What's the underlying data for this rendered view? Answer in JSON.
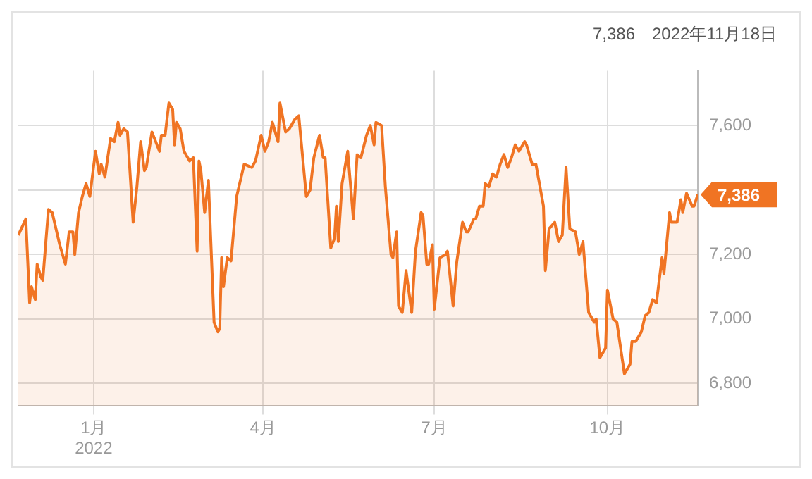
{
  "chart_data": {
    "type": "area",
    "annotations": [
      "7,386",
      "2022年11月18日",
      {
        "text": "7,386",
        "x": "2022-11-18",
        "y": 7386
      }
    ],
    "x": [
      "2021-11-22",
      "2021-11-26",
      "2021-11-28",
      "2021-11-29",
      "2021-12-01",
      "2021-12-02",
      "2021-12-04",
      "2021-12-05",
      "2021-12-08",
      "2021-12-10",
      "2021-12-14",
      "2021-12-17",
      "2021-12-19",
      "2021-12-21",
      "2021-12-22",
      "2021-12-24",
      "2021-12-26",
      "2021-12-28",
      "2021-12-30",
      "2022-01-02",
      "2022-01-04",
      "2022-01-05",
      "2022-01-07",
      "2022-01-10",
      "2022-01-12",
      "2022-01-14",
      "2022-01-15",
      "2022-01-17",
      "2022-01-19",
      "2022-01-22",
      "2022-01-24",
      "2022-01-26",
      "2022-01-28",
      "2022-01-29",
      "2022-02-01",
      "2022-02-05",
      "2022-02-06",
      "2022-02-08",
      "2022-02-10",
      "2022-02-12",
      "2022-02-13",
      "2022-02-14",
      "2022-02-16",
      "2022-02-18",
      "2022-02-21",
      "2022-02-23",
      "2022-02-25",
      "2022-02-26",
      "2022-02-27",
      "2022-03-01",
      "2022-03-03",
      "2022-03-04",
      "2022-03-06",
      "2022-03-08",
      "2022-03-09",
      "2022-03-10",
      "2022-03-11",
      "2022-03-13",
      "2022-03-15",
      "2022-03-18",
      "2022-03-22",
      "2022-03-26",
      "2022-03-28",
      "2022-03-31",
      "2022-04-02",
      "2022-04-04",
      "2022-04-06",
      "2022-04-09",
      "2022-04-10",
      "2022-04-13",
      "2022-04-15",
      "2022-04-17",
      "2022-04-18",
      "2022-04-20",
      "2022-04-24",
      "2022-04-26",
      "2022-04-28",
      "2022-05-01",
      "2022-05-03",
      "2022-05-04",
      "2022-05-07",
      "2022-05-09",
      "2022-05-10",
      "2022-05-11",
      "2022-05-13",
      "2022-05-16",
      "2022-05-19",
      "2022-05-21",
      "2022-05-23",
      "2022-05-26",
      "2022-05-28",
      "2022-05-30",
      "2022-05-31",
      "2022-06-03",
      "2022-06-05",
      "2022-06-08",
      "2022-06-09",
      "2022-06-11",
      "2022-06-12",
      "2022-06-14",
      "2022-06-16",
      "2022-06-19",
      "2022-06-21",
      "2022-06-24",
      "2022-06-25",
      "2022-06-27",
      "2022-06-28",
      "2022-06-30",
      "2022-07-01",
      "2022-07-04",
      "2022-07-07",
      "2022-07-08",
      "2022-07-11",
      "2022-07-13",
      "2022-07-16",
      "2022-07-18",
      "2022-07-19",
      "2022-07-22",
      "2022-07-23",
      "2022-07-25",
      "2022-07-27",
      "2022-07-28",
      "2022-07-30",
      "2022-08-01",
      "2022-08-03",
      "2022-08-05",
      "2022-08-07",
      "2022-08-09",
      "2022-08-11",
      "2022-08-13",
      "2022-08-15",
      "2022-08-18",
      "2022-08-19",
      "2022-08-22",
      "2022-08-24",
      "2022-08-28",
      "2022-08-29",
      "2022-08-31",
      "2022-09-03",
      "2022-09-05",
      "2022-09-07",
      "2022-09-09",
      "2022-09-11",
      "2022-09-14",
      "2022-09-16",
      "2022-09-18",
      "2022-09-21",
      "2022-09-22",
      "2022-09-24",
      "2022-09-25",
      "2022-09-27",
      "2022-09-30",
      "2022-10-01",
      "2022-10-04",
      "2022-10-06",
      "2022-10-10",
      "2022-10-13",
      "2022-10-14",
      "2022-10-16",
      "2022-10-19",
      "2022-10-21",
      "2022-10-23",
      "2022-10-25",
      "2022-10-27",
      "2022-10-30",
      "2022-10-31",
      "2022-11-03",
      "2022-11-04",
      "2022-11-07",
      "2022-11-09",
      "2022-11-10",
      "2022-11-12",
      "2022-11-15",
      "2022-11-16",
      "2022-11-18"
    ],
    "series": [
      {
        "color": "#f07423",
        "values": [
          7260,
          7310,
          7050,
          7100,
          7060,
          7170,
          7130,
          7120,
          7340,
          7330,
          7230,
          7170,
          7270,
          7270,
          7200,
          7330,
          7380,
          7420,
          7380,
          7520,
          7450,
          7480,
          7440,
          7560,
          7550,
          7610,
          7570,
          7590,
          7580,
          7300,
          7410,
          7550,
          7460,
          7470,
          7580,
          7520,
          7570,
          7570,
          7670,
          7650,
          7540,
          7610,
          7590,
          7520,
          7490,
          7500,
          7210,
          7490,
          7460,
          7330,
          7430,
          7280,
          6990,
          6960,
          6970,
          7190,
          7100,
          7190,
          7180,
          7380,
          7480,
          7470,
          7490,
          7570,
          7520,
          7550,
          7610,
          7550,
          7670,
          7580,
          7590,
          7610,
          7620,
          7630,
          7380,
          7400,
          7500,
          7570,
          7500,
          7500,
          7220,
          7250,
          7350,
          7240,
          7420,
          7520,
          7310,
          7510,
          7500,
          7570,
          7600,
          7540,
          7610,
          7600,
          7410,
          7200,
          7190,
          7270,
          7040,
          7020,
          7150,
          7020,
          7210,
          7330,
          7320,
          7170,
          7170,
          7230,
          7030,
          7190,
          7200,
          7210,
          7040,
          7180,
          7300,
          7270,
          7270,
          7310,
          7310,
          7350,
          7350,
          7420,
          7410,
          7450,
          7440,
          7480,
          7510,
          7470,
          7500,
          7540,
          7520,
          7550,
          7540,
          7480,
          7480,
          7350,
          7150,
          7280,
          7300,
          7240,
          7260,
          7470,
          7280,
          7270,
          7200,
          7240,
          7020,
          7010,
          6990,
          7000,
          6880,
          6910,
          7090,
          7000,
          6990,
          6830,
          6860,
          6930,
          6930,
          6960,
          7010,
          7020,
          7060,
          7050,
          7190,
          7140,
          7330,
          7300,
          7300,
          7370,
          7330,
          7390,
          7350,
          7350,
          7386
        ]
      }
    ],
    "xlim": [
      "2021-11-22",
      "2022-11-18"
    ],
    "xticks": [
      {
        "value": "2022-01-01",
        "label": "1月\n2022"
      },
      {
        "value": "2022-04-01",
        "label": "4月"
      },
      {
        "value": "2022-07-01",
        "label": "7月"
      },
      {
        "value": "2022-10-01",
        "label": "10月"
      }
    ],
    "ylim": [
      6730,
      7770
    ],
    "yticks": [
      {
        "value": 6800,
        "label": "6,800"
      },
      {
        "value": 7000,
        "label": "7,000"
      },
      {
        "value": 7200,
        "label": "7,200"
      },
      {
        "value": 7400,
        "label": null
      },
      {
        "value": 7600,
        "label": "7,600"
      }
    ],
    "grid": true
  }
}
